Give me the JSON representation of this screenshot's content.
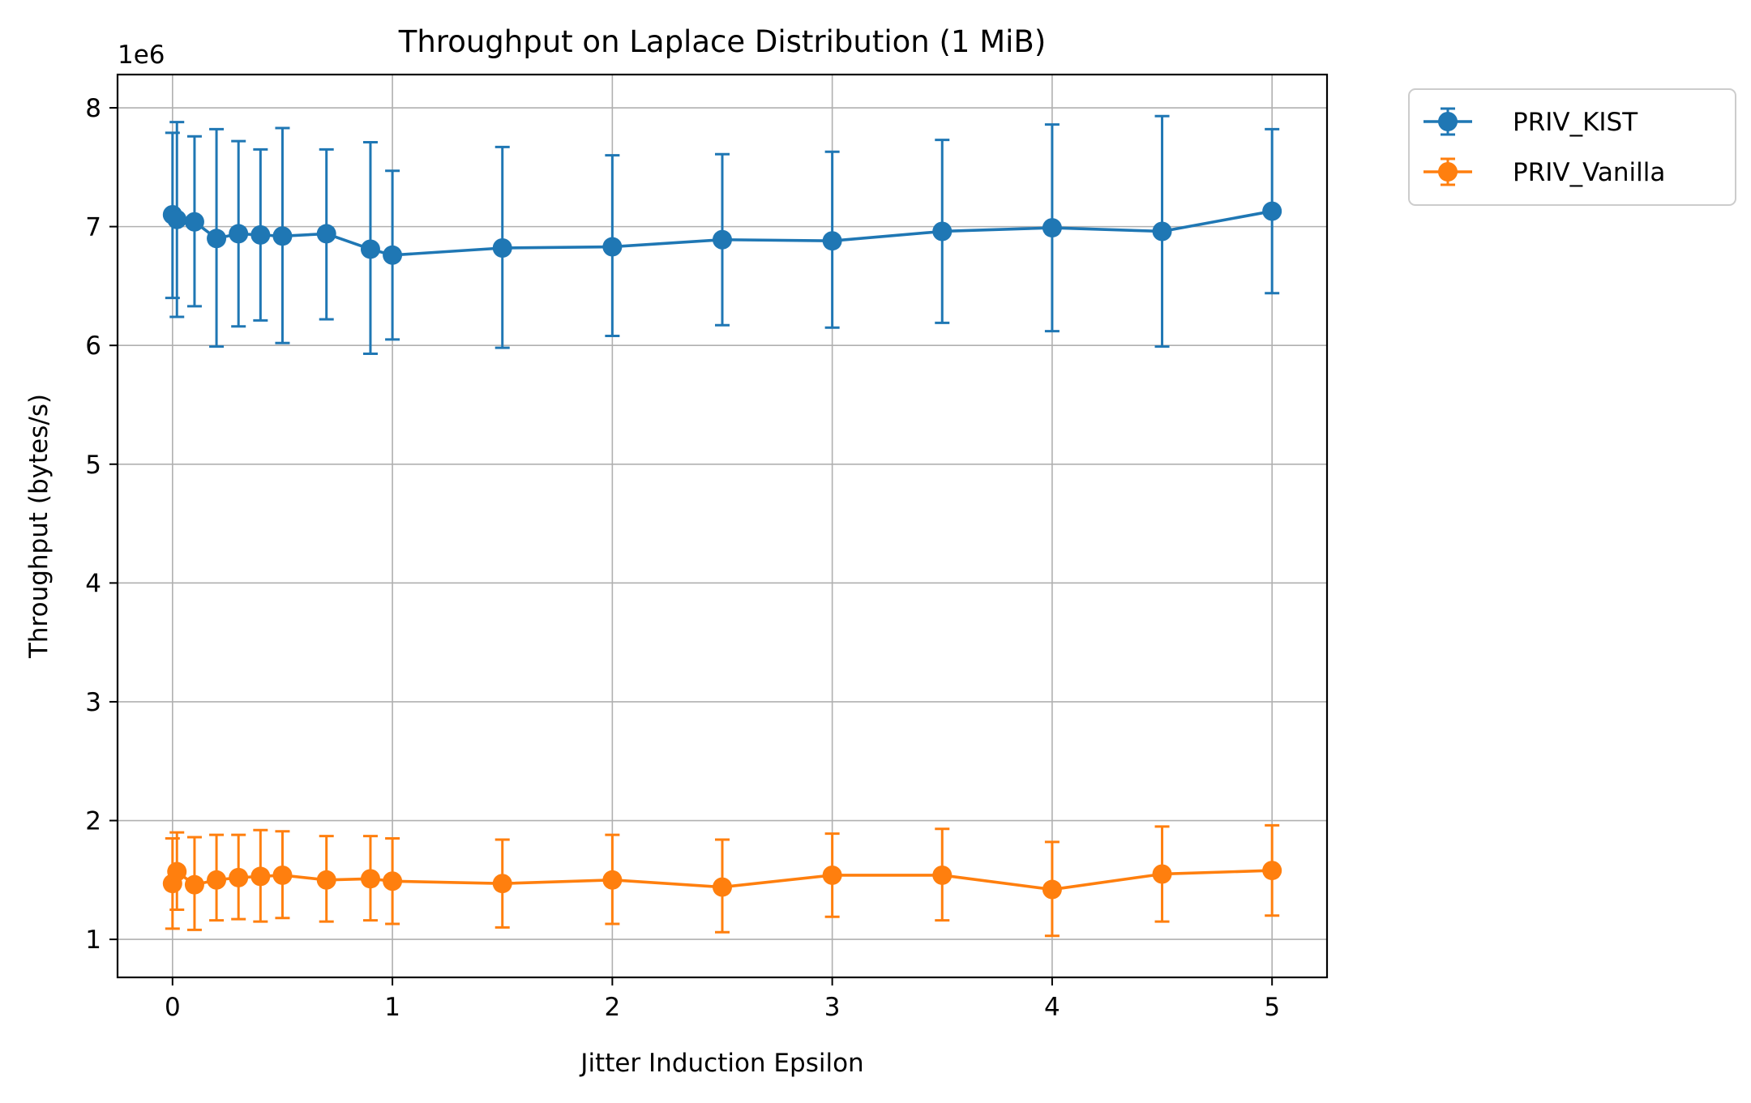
{
  "chart_data": {
    "type": "line",
    "title": "Throughput on Laplace Distribution (1 MiB)",
    "xlabel": "Jitter Induction Epsilon",
    "ylabel": "Throughput (bytes/s)",
    "y_scale_label": "1e6",
    "xlim": [
      -0.25,
      5.25
    ],
    "ylim": [
      0.68,
      8.28
    ],
    "xticks": [
      0,
      1,
      2,
      3,
      4,
      5
    ],
    "xtick_labels": [
      "0",
      "1",
      "2",
      "3",
      "4",
      "5"
    ],
    "yticks": [
      1,
      2,
      3,
      4,
      5,
      6,
      7,
      8
    ],
    "ytick_labels": [
      "1",
      "2",
      "3",
      "4",
      "5",
      "6",
      "7",
      "8"
    ],
    "grid": true,
    "legend_position": "outside upper right",
    "x": [
      0,
      0.02,
      0.1,
      0.2,
      0.3,
      0.4,
      0.5,
      0.7,
      0.9,
      1,
      1.5,
      2,
      2.5,
      3,
      3.5,
      4,
      4.5,
      5
    ],
    "series": [
      {
        "name": "PRIV_KIST",
        "color": "#1f77b4",
        "values": [
          7.1,
          7.06,
          7.04,
          6.9,
          6.94,
          6.93,
          6.92,
          6.94,
          6.81,
          6.76,
          6.82,
          6.83,
          6.89,
          6.88,
          6.96,
          6.99,
          6.96,
          7.13
        ],
        "lower": [
          6.4,
          6.24,
          6.33,
          5.99,
          6.16,
          6.21,
          6.02,
          6.22,
          5.93,
          6.05,
          5.98,
          6.08,
          6.17,
          6.15,
          6.19,
          6.12,
          5.99,
          6.44
        ],
        "upper": [
          7.79,
          7.88,
          7.76,
          7.82,
          7.72,
          7.65,
          7.83,
          7.65,
          7.71,
          7.47,
          7.67,
          7.6,
          7.61,
          7.63,
          7.73,
          7.86,
          7.93,
          7.82
        ]
      },
      {
        "name": "PRIV_Vanilla",
        "color": "#ff7f0e",
        "values": [
          1.47,
          1.57,
          1.46,
          1.5,
          1.52,
          1.53,
          1.54,
          1.5,
          1.51,
          1.49,
          1.47,
          1.5,
          1.44,
          1.54,
          1.54,
          1.42,
          1.55,
          1.58
        ],
        "lower": [
          1.09,
          1.25,
          1.08,
          1.16,
          1.17,
          1.15,
          1.18,
          1.15,
          1.16,
          1.13,
          1.1,
          1.13,
          1.06,
          1.19,
          1.16,
          1.03,
          1.15,
          1.2
        ],
        "upper": [
          1.85,
          1.9,
          1.86,
          1.88,
          1.88,
          1.92,
          1.91,
          1.87,
          1.87,
          1.85,
          1.84,
          1.88,
          1.84,
          1.89,
          1.93,
          1.82,
          1.95,
          1.96
        ]
      }
    ]
  }
}
